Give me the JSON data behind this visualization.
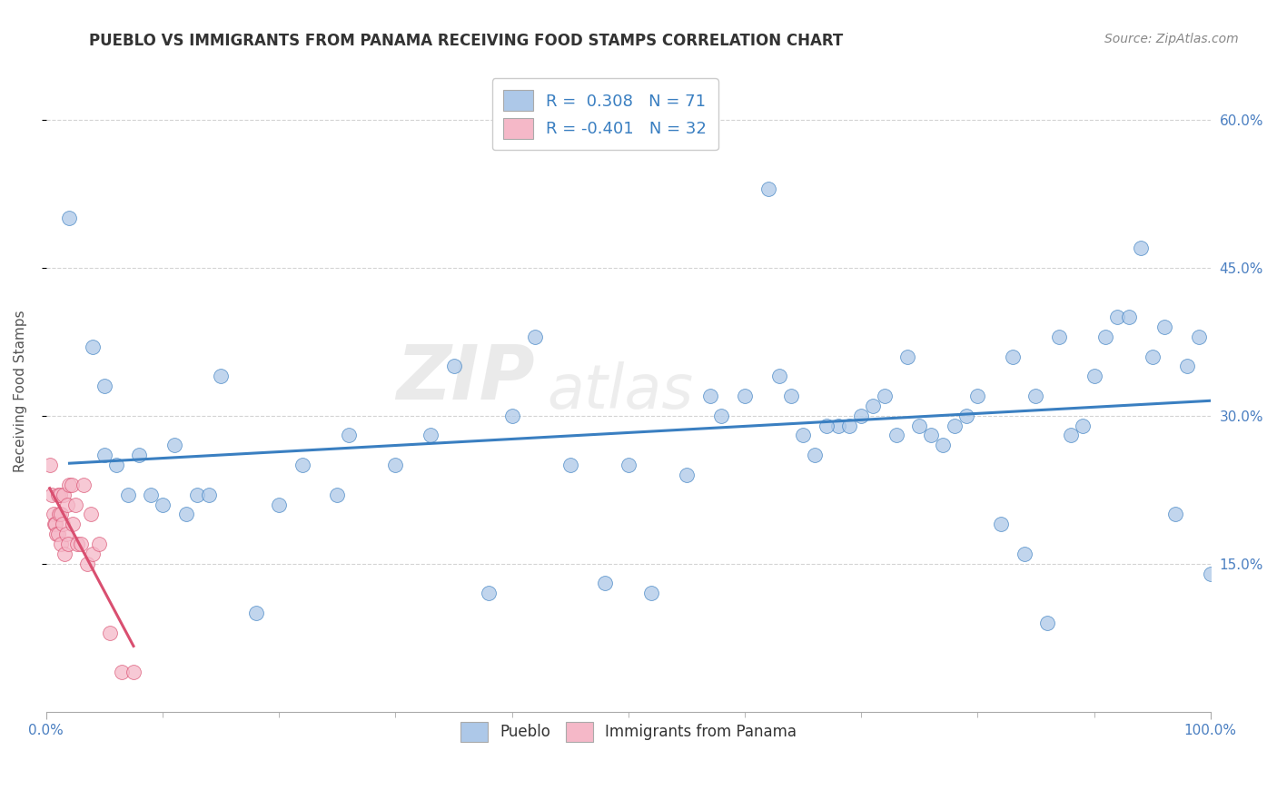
{
  "title": "PUEBLO VS IMMIGRANTS FROM PANAMA RECEIVING FOOD STAMPS CORRELATION CHART",
  "source": "Source: ZipAtlas.com",
  "ylabel": "Receiving Food Stamps",
  "watermark_zip": "ZIP",
  "watermark_atlas": "atlas",
  "legend_bottom": [
    "Pueblo",
    "Immigrants from Panama"
  ],
  "blue_R": 0.308,
  "blue_N": 71,
  "pink_R": -0.401,
  "pink_N": 32,
  "blue_color": "#adc8e8",
  "pink_color": "#f5b8c8",
  "blue_line_color": "#3a7fc1",
  "pink_line_color": "#d94f70",
  "xlim": [
    0.0,
    1.0
  ],
  "ylim": [
    0.0,
    0.65
  ],
  "yticks": [
    0.15,
    0.3,
    0.45,
    0.6
  ],
  "background_color": "#ffffff",
  "grid_color": "#d0d0d0",
  "title_color": "#333333",
  "label_color": "#4a7fc1",
  "blue_x": [
    0.02,
    0.04,
    0.05,
    0.05,
    0.06,
    0.07,
    0.08,
    0.09,
    0.1,
    0.11,
    0.12,
    0.13,
    0.14,
    0.15,
    0.18,
    0.2,
    0.22,
    0.25,
    0.26,
    0.3,
    0.33,
    0.35,
    0.38,
    0.4,
    0.42,
    0.45,
    0.48,
    0.5,
    0.52,
    0.55,
    0.57,
    0.58,
    0.6,
    0.62,
    0.63,
    0.65,
    0.66,
    0.68,
    0.7,
    0.72,
    0.74,
    0.75,
    0.76,
    0.78,
    0.8,
    0.82,
    0.83,
    0.84,
    0.85,
    0.86,
    0.87,
    0.88,
    0.89,
    0.9,
    0.92,
    0.94,
    0.95,
    0.96,
    0.97,
    0.98,
    0.99,
    1.0,
    0.64,
    0.67,
    0.69,
    0.71,
    0.73,
    0.77,
    0.79,
    0.91,
    0.93
  ],
  "blue_y": [
    0.5,
    0.37,
    0.26,
    0.33,
    0.25,
    0.22,
    0.26,
    0.22,
    0.21,
    0.27,
    0.2,
    0.22,
    0.22,
    0.34,
    0.1,
    0.21,
    0.25,
    0.22,
    0.28,
    0.25,
    0.28,
    0.35,
    0.12,
    0.3,
    0.38,
    0.25,
    0.13,
    0.25,
    0.12,
    0.24,
    0.32,
    0.3,
    0.32,
    0.53,
    0.34,
    0.28,
    0.26,
    0.29,
    0.3,
    0.32,
    0.36,
    0.29,
    0.28,
    0.29,
    0.32,
    0.19,
    0.36,
    0.16,
    0.32,
    0.09,
    0.38,
    0.28,
    0.29,
    0.34,
    0.4,
    0.47,
    0.36,
    0.39,
    0.2,
    0.35,
    0.38,
    0.14,
    0.32,
    0.29,
    0.29,
    0.31,
    0.28,
    0.27,
    0.3,
    0.38,
    0.4
  ],
  "pink_x": [
    0.003,
    0.005,
    0.006,
    0.007,
    0.008,
    0.009,
    0.01,
    0.01,
    0.011,
    0.012,
    0.013,
    0.013,
    0.014,
    0.015,
    0.016,
    0.017,
    0.018,
    0.019,
    0.02,
    0.022,
    0.023,
    0.025,
    0.027,
    0.03,
    0.032,
    0.035,
    0.038,
    0.04,
    0.045,
    0.055,
    0.065,
    0.075
  ],
  "pink_y": [
    0.25,
    0.22,
    0.2,
    0.19,
    0.19,
    0.18,
    0.22,
    0.18,
    0.2,
    0.22,
    0.17,
    0.2,
    0.19,
    0.22,
    0.16,
    0.18,
    0.21,
    0.17,
    0.23,
    0.23,
    0.19,
    0.21,
    0.17,
    0.17,
    0.23,
    0.15,
    0.2,
    0.16,
    0.17,
    0.08,
    0.04,
    0.04
  ]
}
